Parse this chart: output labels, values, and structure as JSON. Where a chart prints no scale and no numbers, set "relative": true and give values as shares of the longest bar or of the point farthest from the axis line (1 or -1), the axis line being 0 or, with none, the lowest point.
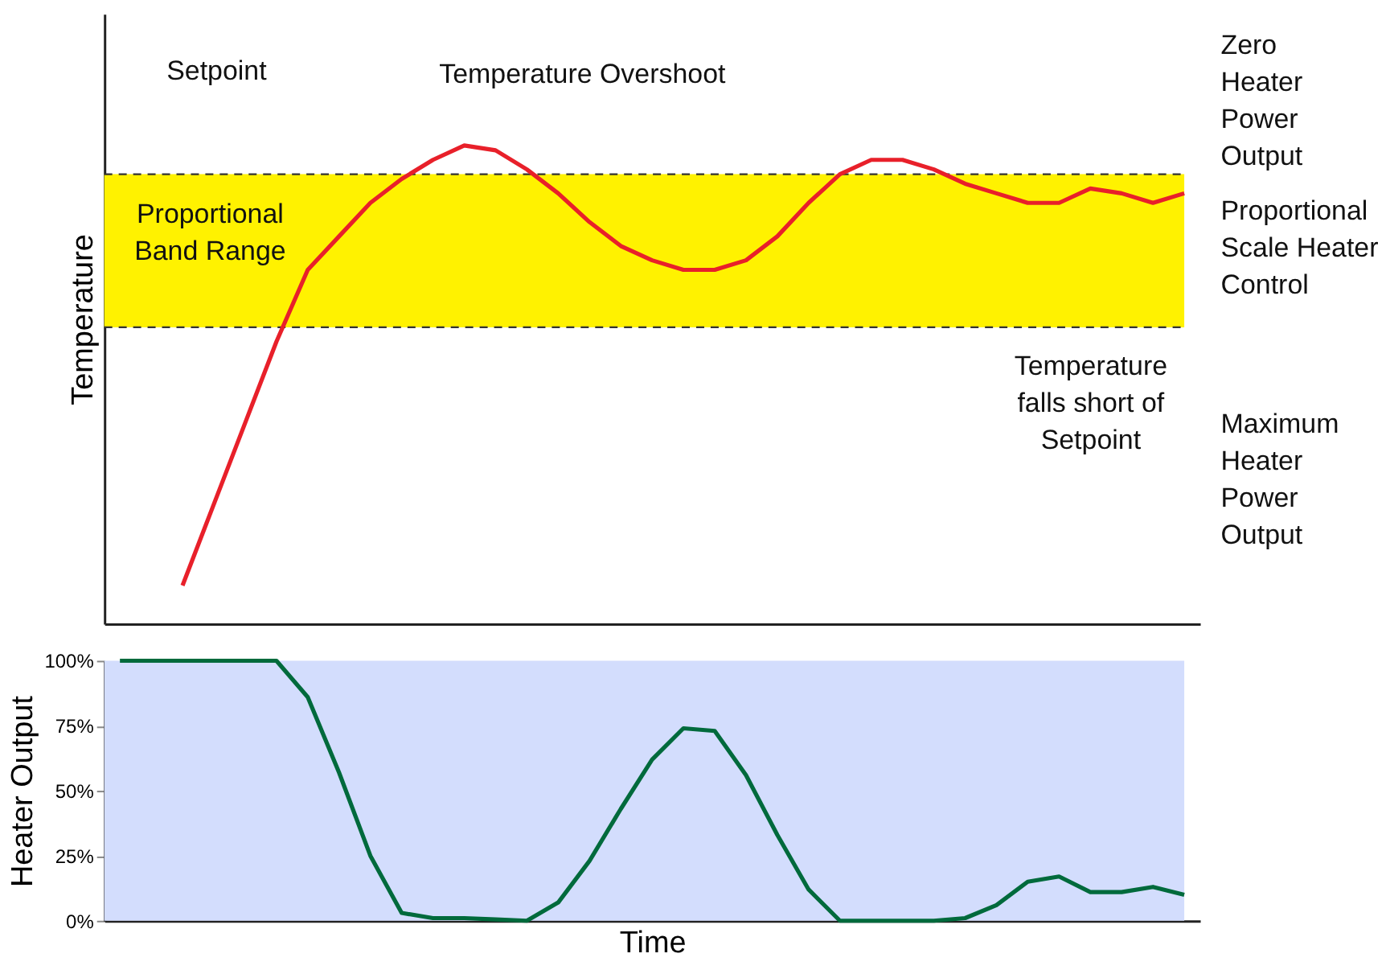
{
  "chart_data": [
    {
      "type": "line",
      "relative": true,
      "ylabel": "Temperature",
      "tick_labels": false,
      "grid": false,
      "marker": "none",
      "line_style": "solid",
      "categories": [
        null,
        null,
        null,
        null,
        null,
        null,
        null,
        null,
        null,
        null,
        null,
        null,
        null,
        null,
        null,
        null,
        null,
        null,
        null,
        null,
        null,
        null,
        null,
        null,
        null,
        null,
        null,
        null,
        null,
        null,
        null,
        null,
        null,
        null,
        null
      ],
      "series": [
        {
          "color": "#e8202a",
          "values": [
            null,
            null,
            0.08,
            0.25,
            0.42,
            0.59,
            0.74,
            0.81,
            0.88,
            0.93,
            0.97,
            1.0,
            0.99,
            0.95,
            0.9,
            0.84,
            0.79,
            0.76,
            0.74,
            0.74,
            0.76,
            0.81,
            0.88,
            0.94,
            0.97,
            0.97,
            0.95,
            0.92,
            0.9,
            0.88,
            0.88,
            0.91,
            0.9,
            0.88,
            0.9
          ]
        }
      ],
      "ref_lines": [
        {
          "axis": "y",
          "value": 0.94,
          "label": "Setpoint",
          "line_style": "dashed",
          "color": "#333333"
        },
        {
          "axis": "y",
          "value": 0.62,
          "label": null,
          "line_style": "dashed",
          "color": "#333333"
        }
      ],
      "bands": [
        {
          "axis": "y",
          "from": 0.62,
          "to": 0.94,
          "label": "Proportional\nBand Range",
          "color": "#fff200"
        }
      ],
      "annotations": [
        "Temperature Overshoot",
        "Temperature\nfalls short of\nSetpoint",
        "Zero\nHeater\nPower\nOutput",
        "Proportional\nScale Heater\nControl",
        "Maximum\nHeater\nPower\nOutput"
      ]
    },
    {
      "type": "line",
      "xlabel": "Time",
      "ylabel": "Heater Output",
      "tick_labels": "y",
      "grid": false,
      "marker": "none",
      "line_style": "solid",
      "categories": [
        null,
        null,
        null,
        null,
        null,
        null,
        null,
        null,
        null,
        null,
        null,
        null,
        null,
        null,
        null,
        null,
        null,
        null,
        null,
        null,
        null,
        null,
        null,
        null,
        null,
        null,
        null,
        null,
        null,
        null,
        null,
        null,
        null,
        null,
        null
      ],
      "ylim": [
        0,
        100
      ],
      "yticks": [
        {
          "value": 0,
          "label": "0%"
        },
        {
          "value": 25,
          "label": "25%"
        },
        {
          "value": 50,
          "label": "50%"
        },
        {
          "value": 75,
          "label": "75%"
        },
        {
          "value": 100,
          "label": "100%"
        }
      ],
      "series": [
        {
          "color": "#006a3c",
          "values": [
            100,
            100,
            100,
            100,
            100,
            100,
            86,
            57,
            25,
            3,
            1,
            1,
            0.5,
            0,
            7,
            23,
            43,
            62,
            74,
            73,
            56,
            33,
            12,
            0,
            0,
            0,
            0,
            1,
            6,
            15,
            17,
            11,
            11,
            13,
            10
          ]
        }
      ],
      "bands": [
        {
          "axis": "y",
          "from": 0,
          "to": 100,
          "label": null,
          "color": "#d3ddfd"
        }
      ]
    }
  ]
}
